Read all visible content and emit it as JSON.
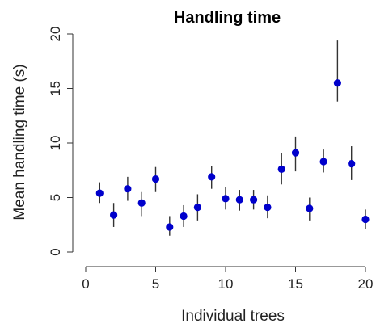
{
  "chart_data": {
    "type": "scatter",
    "title": "Handling  time",
    "xlabel": "Individual trees",
    "ylabel": "Mean handling time (s)",
    "xlim": [
      0,
      20
    ],
    "ylim": [
      0,
      20
    ],
    "x_ticks": [
      "0",
      "5",
      "10",
      "15",
      "20"
    ],
    "y_ticks": [
      "0",
      "5",
      "10",
      "15",
      "20"
    ],
    "grid": false,
    "marker_color": "#0000cc",
    "error_bar_color": "#333333",
    "points": [
      {
        "x": 1,
        "y": 5.4,
        "lo": 4.5,
        "hi": 6.4
      },
      {
        "x": 2,
        "y": 3.4,
        "lo": 2.3,
        "hi": 4.5
      },
      {
        "x": 3,
        "y": 5.8,
        "lo": 4.7,
        "hi": 6.9
      },
      {
        "x": 4,
        "y": 4.5,
        "lo": 3.3,
        "hi": 5.5
      },
      {
        "x": 5,
        "y": 6.7,
        "lo": 5.5,
        "hi": 7.8
      },
      {
        "x": 6,
        "y": 2.3,
        "lo": 1.5,
        "hi": 3.3
      },
      {
        "x": 7,
        "y": 3.3,
        "lo": 2.3,
        "hi": 4.3
      },
      {
        "x": 8,
        "y": 4.1,
        "lo": 2.9,
        "hi": 5.3
      },
      {
        "x": 9,
        "y": 6.9,
        "lo": 5.8,
        "hi": 7.9
      },
      {
        "x": 10,
        "y": 4.9,
        "lo": 3.9,
        "hi": 6.0
      },
      {
        "x": 11,
        "y": 4.8,
        "lo": 3.8,
        "hi": 5.7
      },
      {
        "x": 12,
        "y": 4.8,
        "lo": 3.9,
        "hi": 5.7
      },
      {
        "x": 13,
        "y": 4.1,
        "lo": 3.1,
        "hi": 5.2
      },
      {
        "x": 14,
        "y": 7.6,
        "lo": 6.2,
        "hi": 9.1
      },
      {
        "x": 15,
        "y": 9.1,
        "lo": 7.4,
        "hi": 10.6
      },
      {
        "x": 16,
        "y": 4.0,
        "lo": 2.9,
        "hi": 5.0
      },
      {
        "x": 17,
        "y": 8.3,
        "lo": 7.3,
        "hi": 9.4
      },
      {
        "x": 18,
        "y": 15.5,
        "lo": 13.8,
        "hi": 19.4
      },
      {
        "x": 19,
        "y": 8.1,
        "lo": 6.6,
        "hi": 9.7
      },
      {
        "x": 20,
        "y": 3.0,
        "lo": 2.1,
        "hi": 3.9
      }
    ]
  }
}
